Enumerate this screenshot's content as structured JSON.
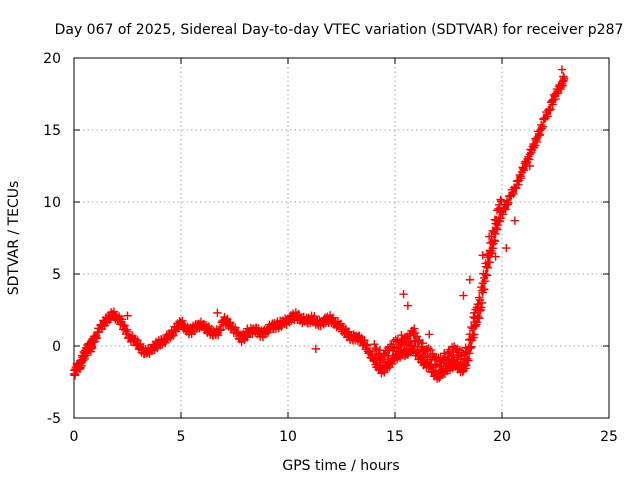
{
  "chart_data": {
    "type": "scatter",
    "title": "Day 067 of 2025, Sidereal Day-to-day VTEC variation (SDTVAR) for receiver p287",
    "xlabel": "GPS time / hours",
    "ylabel": "SDTVAR / TECUs",
    "xlim": [
      0,
      25
    ],
    "ylim": [
      -5,
      20
    ],
    "xticks": [
      0,
      5,
      10,
      15,
      20,
      25
    ],
    "yticks": [
      -5,
      0,
      5,
      10,
      15,
      20
    ],
    "grid": true,
    "marker": "plus",
    "color": "#ff0000",
    "series": [
      {
        "name": "SDTVAR",
        "x": [
          0.0,
          0.1,
          0.2,
          0.3,
          0.4,
          0.5,
          0.6,
          0.7,
          0.8,
          0.9,
          1.0,
          1.2,
          1.4,
          1.6,
          1.8,
          2.0,
          2.2,
          2.4,
          2.6,
          2.8,
          3.0,
          3.2,
          3.4,
          3.6,
          3.8,
          4.0,
          4.2,
          4.4,
          4.6,
          4.8,
          5.0,
          5.2,
          5.4,
          5.6,
          5.8,
          6.0,
          6.2,
          6.4,
          6.6,
          6.8,
          7.0,
          7.2,
          7.4,
          7.6,
          7.8,
          8.0,
          8.2,
          8.4,
          8.6,
          8.8,
          9.0,
          9.2,
          9.4,
          9.6,
          9.8,
          10.0,
          10.2,
          10.4,
          10.6,
          10.8,
          11.0,
          11.2,
          11.4,
          11.6,
          11.8,
          12.0,
          12.2,
          12.4,
          12.6,
          12.8,
          13.0,
          13.2,
          13.4,
          13.6,
          13.8,
          14.0,
          14.2,
          14.4,
          14.6,
          14.8,
          15.0,
          15.2,
          15.4,
          15.6,
          15.8,
          16.0,
          16.2,
          16.4,
          16.6,
          16.8,
          17.0,
          17.2,
          17.4,
          17.6,
          17.8,
          18.0,
          18.2,
          18.4,
          18.6,
          18.8,
          19.0,
          19.2,
          19.4,
          19.6,
          19.8,
          20.0,
          20.2,
          20.4,
          20.6,
          20.8,
          21.0,
          21.2,
          21.4,
          21.6,
          21.8,
          22.0,
          22.2,
          22.4,
          22.6,
          22.8,
          22.9
        ],
        "y": [
          -2.0,
          -1.6,
          -1.2,
          -1.5,
          -0.8,
          -0.5,
          -0.3,
          0.1,
          -0.2,
          0.4,
          0.6,
          1.2,
          1.6,
          1.9,
          2.2,
          2.0,
          1.7,
          1.1,
          0.6,
          0.4,
          0.1,
          -0.3,
          -0.5,
          -0.2,
          0.0,
          0.2,
          0.4,
          0.6,
          0.9,
          1.3,
          1.6,
          1.3,
          1.0,
          1.2,
          1.5,
          1.4,
          1.2,
          1.0,
          0.8,
          1.1,
          1.8,
          1.6,
          1.3,
          0.9,
          0.5,
          0.7,
          0.9,
          1.2,
          1.0,
          0.8,
          1.1,
          1.3,
          1.4,
          1.5,
          1.6,
          1.8,
          2.0,
          2.1,
          1.9,
          1.7,
          1.8,
          1.9,
          1.5,
          1.7,
          1.8,
          1.9,
          1.6,
          1.4,
          1.1,
          0.8,
          0.5,
          0.7,
          0.4,
          0.1,
          -0.4,
          -1.0,
          -1.4,
          -1.7,
          -1.5,
          -1.1,
          -0.8,
          -0.6,
          -0.4,
          -0.6,
          0.0,
          -0.5,
          -0.9,
          -1.2,
          -1.4,
          -1.8,
          -2.1,
          -1.9,
          -1.6,
          -1.4,
          -1.2,
          -1.5,
          -1.7,
          -1.0,
          0.4,
          1.5,
          2.5,
          4.5,
          5.8,
          7.1,
          8.4,
          9.3,
          9.8,
          10.4,
          11.0,
          11.5,
          12.3,
          13.0,
          13.6,
          14.3,
          15.0,
          15.8,
          16.4,
          17.1,
          17.7,
          18.2,
          18.6
        ]
      }
    ],
    "extra_points": {
      "x": [
        0.2,
        0.5,
        1.6,
        2.5,
        3.2,
        6.7,
        7.8,
        8.1,
        11.3,
        11.9,
        15.4,
        15.6,
        15.9,
        16.1,
        16.3,
        16.6,
        18.2,
        18.5,
        18.7,
        18.9,
        19.1,
        19.4,
        19.7,
        20.2,
        20.6,
        21.3,
        22.8
      ],
      "y": [
        -1.4,
        -0.9,
        1.9,
        2.1,
        -0.3,
        2.3,
        0.7,
        1.2,
        -0.2,
        1.7,
        3.6,
        2.8,
        1.2,
        0.4,
        -0.4,
        0.8,
        3.5,
        4.6,
        2.3,
        2.9,
        6.3,
        7.6,
        6.2,
        6.8,
        8.7,
        12.5,
        19.2
      ]
    }
  }
}
